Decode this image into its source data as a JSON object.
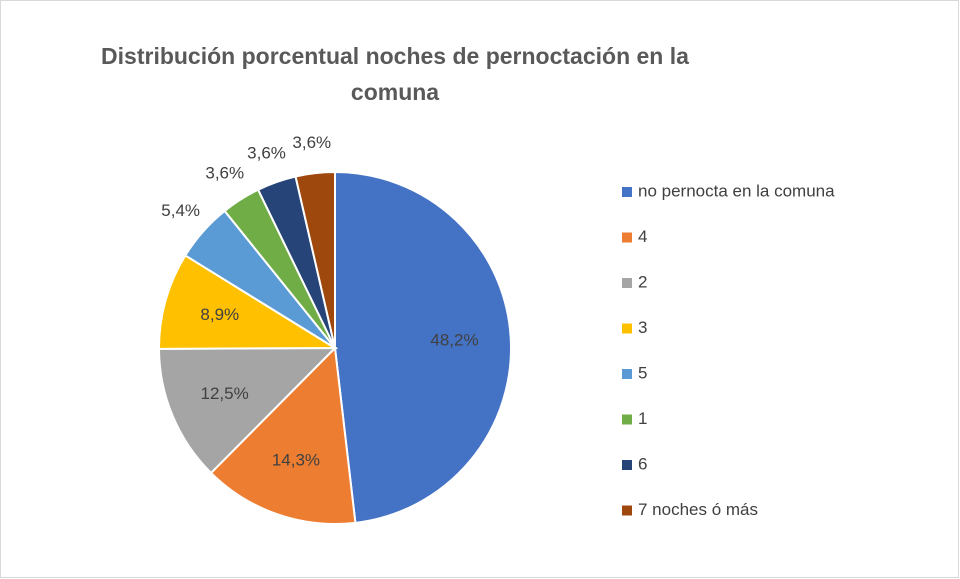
{
  "chart_data": {
    "type": "pie",
    "title": "Distribución porcentual  noches de pernoctación en la comuna",
    "categories": [
      "no pernocta en la comuna",
      "4",
      "2",
      "3",
      "5",
      "1",
      "6",
      "7 noches ó más"
    ],
    "values": [
      48.2,
      14.3,
      12.5,
      8.9,
      5.4,
      3.6,
      3.6,
      3.6
    ],
    "value_labels": [
      "48,2%",
      "14,3%",
      "12,5%",
      "8,9%",
      "5,4%",
      "3,6%",
      "3,6%",
      "3,6%"
    ],
    "colors": [
      "#4472c4",
      "#ed7d31",
      "#a5a5a5",
      "#ffc000",
      "#5b9bd5",
      "#70ad47",
      "#264478",
      "#9e480e"
    ],
    "legend": "right"
  }
}
